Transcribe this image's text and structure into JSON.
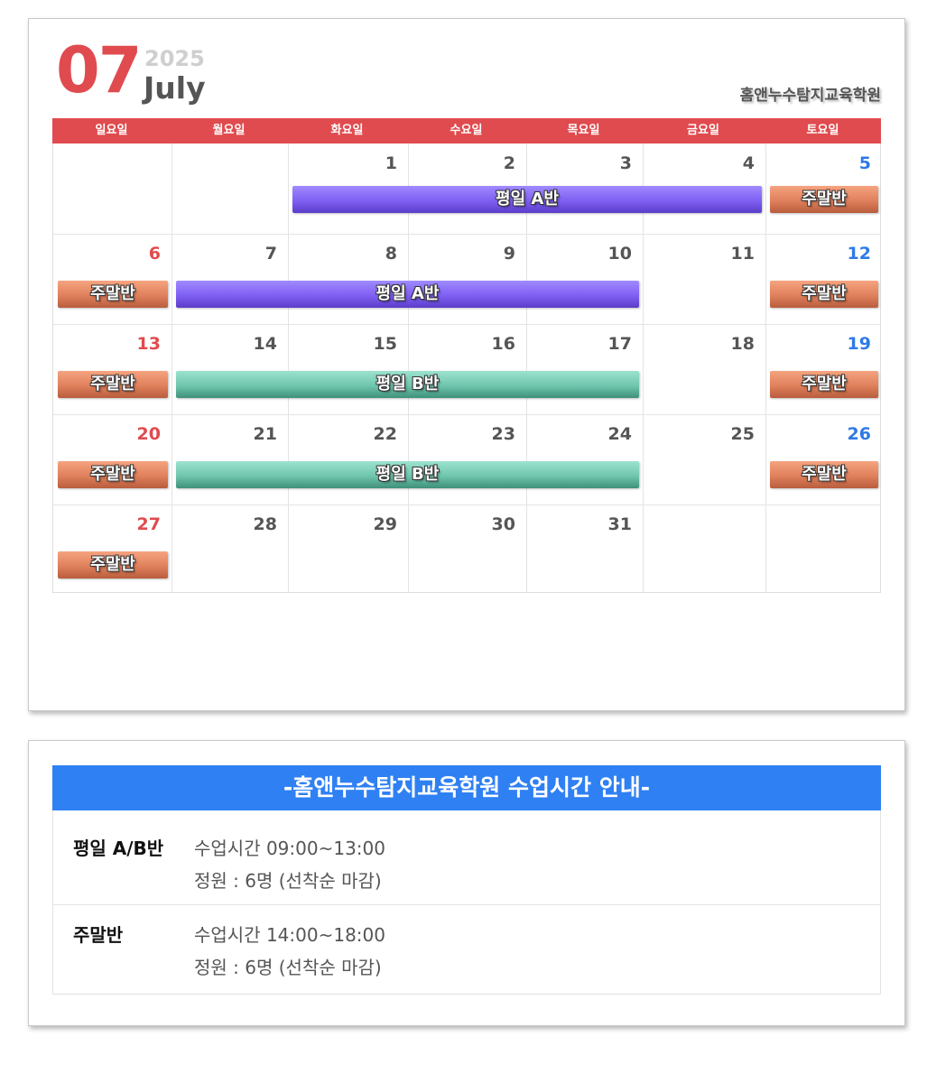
{
  "header": {
    "month_number": "07",
    "year": "2025",
    "month_name": "July",
    "academy": "홈앤누수탐지교육학원"
  },
  "weekdays": [
    "일요일",
    "월요일",
    "화요일",
    "수요일",
    "목요일",
    "금요일",
    "토요일"
  ],
  "weeks": [
    [
      "",
      "",
      "1",
      "2",
      "3",
      "4",
      "5"
    ],
    [
      "6",
      "7",
      "8",
      "9",
      "10",
      "11",
      "12"
    ],
    [
      "13",
      "14",
      "15",
      "16",
      "17",
      "18",
      "19"
    ],
    [
      "20",
      "21",
      "22",
      "23",
      "24",
      "25",
      "26"
    ],
    [
      "27",
      "28",
      "29",
      "30",
      "31",
      "",
      ""
    ]
  ],
  "events": [
    {
      "label": "평일 A반",
      "week": 0,
      "start_col": 2,
      "end_col": 5,
      "kind": "a"
    },
    {
      "label": "주말반",
      "week": 0,
      "start_col": 6,
      "end_col": 6,
      "kind": "w"
    },
    {
      "label": "주말반",
      "week": 1,
      "start_col": 0,
      "end_col": 0,
      "kind": "w"
    },
    {
      "label": "평일 A반",
      "week": 1,
      "start_col": 1,
      "end_col": 4,
      "kind": "a"
    },
    {
      "label": "주말반",
      "week": 1,
      "start_col": 6,
      "end_col": 6,
      "kind": "w"
    },
    {
      "label": "주말반",
      "week": 2,
      "start_col": 0,
      "end_col": 0,
      "kind": "w"
    },
    {
      "label": "평일 B반",
      "week": 2,
      "start_col": 1,
      "end_col": 4,
      "kind": "b"
    },
    {
      "label": "주말반",
      "week": 2,
      "start_col": 6,
      "end_col": 6,
      "kind": "w"
    },
    {
      "label": "주말반",
      "week": 3,
      "start_col": 0,
      "end_col": 0,
      "kind": "w"
    },
    {
      "label": "평일 B반",
      "week": 3,
      "start_col": 1,
      "end_col": 4,
      "kind": "b"
    },
    {
      "label": "주말반",
      "week": 3,
      "start_col": 6,
      "end_col": 6,
      "kind": "w"
    },
    {
      "label": "주말반",
      "week": 4,
      "start_col": 0,
      "end_col": 0,
      "kind": "w"
    }
  ],
  "colors": {
    "accent_red": "#e04b4f",
    "saturday_blue": "#2f7ae5",
    "info_header_blue": "#2f80f3",
    "weekday_a": "#7f5ff2",
    "weekday_b": "#6fc5ad",
    "weekend": "#e0805c"
  },
  "info": {
    "title": "-홈앤누수탐지교육학원 수업시간 안내-",
    "rows": [
      {
        "label": "평일 A/B반",
        "time": "수업시간 09:00~13:00",
        "capacity": "정원 : 6명 (선착순 마감)"
      },
      {
        "label": "주말반",
        "time": "수업시간 14:00~18:00",
        "capacity": "정원 : 6명 (선착순 마감)"
      }
    ]
  }
}
